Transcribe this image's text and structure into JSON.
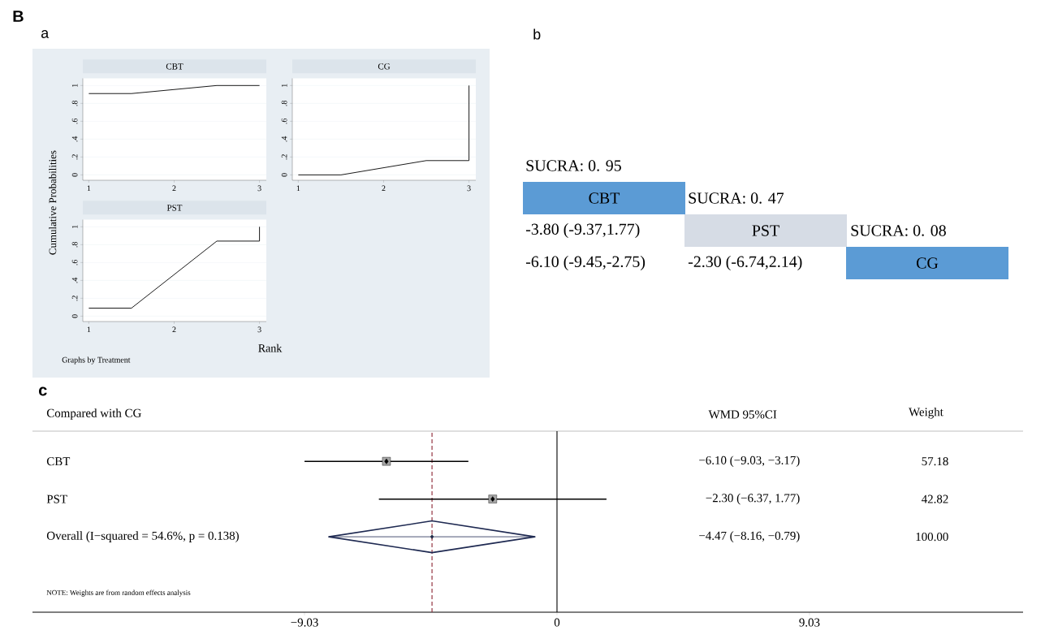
{
  "chart_data": [
    {
      "type": "line",
      "title": "CBT",
      "ylabel": "Cumulative Probabilities",
      "annotations": [
        "B",
        "a"
      ],
      "grid": "y",
      "x": [
        1,
        1.5,
        2.5,
        3
      ],
      "values": [
        0.91,
        0.91,
        1.0,
        1.0
      ],
      "color": "#000000",
      "xlim": [
        0.93,
        3.08
      ],
      "ylim": [
        -0.06,
        1.08
      ],
      "xticks": [
        1,
        2,
        3
      ],
      "yticks": [
        0,
        {
          "value": 0.2,
          "label": ".2"
        },
        {
          "value": 0.4,
          "label": ".4"
        },
        {
          "value": 0.6,
          "label": ".6"
        },
        {
          "value": 0.8,
          "label": ".8"
        },
        1
      ]
    },
    {
      "type": "line",
      "title": "CG",
      "grid": "y",
      "x": [
        1,
        1.5,
        2.5,
        3,
        3
      ],
      "values": [
        0.0,
        0.0,
        0.16,
        0.16,
        1.0
      ],
      "color": "#000000",
      "xlim": [
        0.93,
        3.08
      ],
      "ylim": [
        -0.06,
        1.08
      ],
      "xticks": [
        1,
        2,
        3
      ],
      "yticks": [
        0,
        {
          "value": 0.2,
          "label": ".2"
        },
        {
          "value": 0.4,
          "label": ".4"
        },
        {
          "value": 0.6,
          "label": ".6"
        },
        {
          "value": 0.8,
          "label": ".8"
        },
        1
      ]
    },
    {
      "type": "line",
      "title": "PST",
      "xlabel": "Rank",
      "annotations": [
        "Graphs by Treatment"
      ],
      "grid": "y",
      "x": [
        1,
        1.5,
        2.5,
        3,
        3
      ],
      "values": [
        0.09,
        0.09,
        0.84,
        0.84,
        1.0
      ],
      "color": "#000000",
      "xlim": [
        0.93,
        3.08
      ],
      "ylim": [
        -0.06,
        1.08
      ],
      "xticks": [
        1,
        2,
        3
      ],
      "yticks": [
        0,
        {
          "value": 0.2,
          "label": ".2"
        },
        {
          "value": 0.4,
          "label": ".4"
        },
        {
          "value": 0.6,
          "label": ".6"
        },
        {
          "value": 0.8,
          "label": ".8"
        },
        1
      ]
    },
    {
      "type": "other",
      "title": "b",
      "annotations": [
        "SUCRA: 0. 95",
        "CBT",
        "SUCRA: 0. 47",
        "-3.80 (-9.37,1.77)",
        "PST",
        "SUCRA: 0. 08",
        "-6.10 (-9.45,-2.75)",
        "-2.30 (-6.74,2.14)",
        "CG"
      ]
    },
    {
      "type": "scatter",
      "title": "c",
      "orientation": "horizontal",
      "ylabel": "Compared with CG",
      "categories": [
        "CBT",
        "PST",
        "Overall  (I−squared = 54.6%, p = 0.138)"
      ],
      "series": [
        {
          "type": "scatter",
          "marker": "square",
          "color": "#000000",
          "values": [
            -6.1,
            -2.3,
            null
          ],
          "errors": [
            [
              -9.03,
              -3.17
            ],
            [
              -6.37,
              1.77
            ],
            null
          ]
        },
        {
          "type": "scatter",
          "marker": "diamond",
          "color": "#1f2a52",
          "values": [
            null,
            null,
            -4.47
          ],
          "errors": [
            null,
            null,
            [
              -8.16,
              -0.79
            ]
          ]
        }
      ],
      "xlim": [
        -18.76,
        16.67
      ],
      "xticks": [
        {
          "value": -9.03,
          "label": "−9.03"
        },
        0,
        {
          "value": 9.03,
          "label": "9.03"
        }
      ],
      "ref_lines": [
        {
          "axis": "x",
          "value": 0,
          "color": "#000000",
          "line_style": "solid"
        },
        {
          "axis": "x",
          "value": -4.47,
          "color": "#8b2331",
          "line_style": "dashed"
        }
      ],
      "annotations": [
        "WMD  95%CI",
        "Weight",
        "NOTE: Weights are from random effects analysis",
        "−6.10 (−9.03, −3.17)",
        "57.18",
        "−2.30 (−6.37, 1.77)",
        "42.82",
        "−4.47 (−8.16, −0.79)",
        "100.00"
      ]
    }
  ]
}
